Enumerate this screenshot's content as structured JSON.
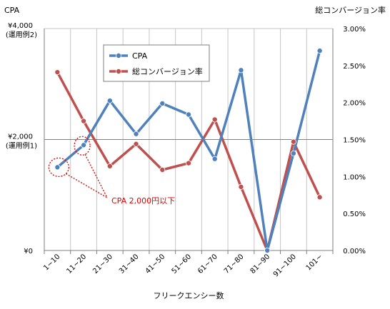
{
  "chart_data": {
    "type": "line",
    "categories": [
      "1~10",
      "11~20",
      "21~30",
      "31~40",
      "41~50",
      "51~60",
      "61~70",
      "71~80",
      "81~90",
      "91~100",
      "101~"
    ],
    "xlabel": "フリークエンシー数",
    "left_axis": {
      "label": "CPA",
      "range": [
        0,
        4000
      ],
      "ticks": [
        "¥0",
        "¥2,000",
        "¥4,000"
      ],
      "tick_notes": {
        "¥2,000": "(運用例1)",
        "¥4,000": "(運用例2)"
      }
    },
    "right_axis": {
      "label": "総コンバージョン率",
      "range": [
        0,
        0.03
      ],
      "ticks": [
        "0.00%",
        "0.50%",
        "1.00%",
        "1.50%",
        "2.00%",
        "2.50%",
        "3.00%"
      ]
    },
    "series": [
      {
        "name": "CPA",
        "axis": "left",
        "color": "#4f81bd",
        "values": [
          1500,
          1900,
          2700,
          2100,
          2650,
          2450,
          1650,
          3250,
          0,
          1750,
          3600
        ]
      },
      {
        "name": "総コンバージョン率",
        "axis": "right",
        "color": "#c0504d",
        "values": [
          0.0241,
          0.0175,
          0.0114,
          0.0144,
          0.0109,
          0.0118,
          0.0177,
          0.0086,
          0.0,
          0.0147,
          0.0072
        ]
      }
    ],
    "grid": true,
    "legend_position": "top-center",
    "annotation": {
      "text": "CPA 2,000円以下",
      "color": "#e00000"
    }
  }
}
